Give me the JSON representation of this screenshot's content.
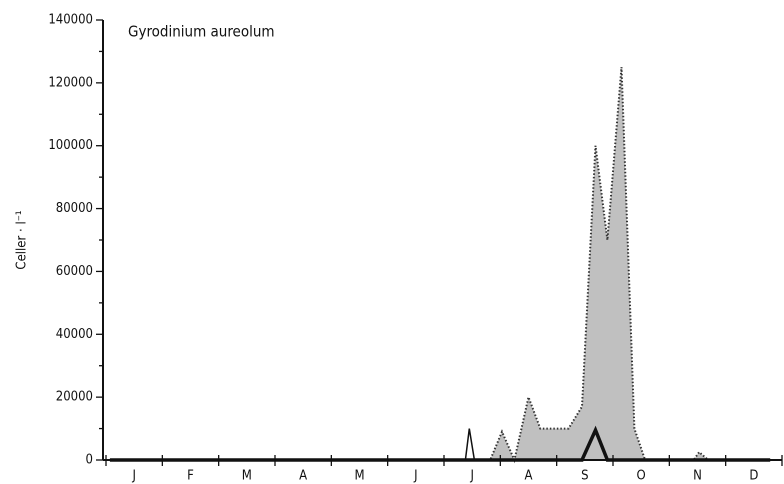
{
  "chart_data": {
    "type": "area",
    "title": "Gyrodinium aureolum",
    "y_label": "Celler · l⁻¹",
    "categories": [
      "J",
      "F",
      "M",
      "A",
      "M",
      "J",
      "J",
      "A",
      "S",
      "O",
      "N",
      "D"
    ],
    "xlim": [
      0,
      12
    ],
    "ylim": [
      0,
      140000
    ],
    "yticks": [
      0,
      20000,
      40000,
      60000,
      80000,
      100000,
      120000,
      140000
    ],
    "yticks_minor": [
      10000,
      30000,
      50000,
      70000,
      90000,
      110000,
      130000
    ],
    "series": [
      {
        "color": "#c0c0c0",
        "line_color": "#333333",
        "dash": "dotted",
        "line_width": 2,
        "fill": true,
        "x": [
          0.07,
          6.82,
          7.03,
          7.25,
          7.5,
          7.71,
          8.21,
          8.45,
          8.69,
          8.9,
          9.15,
          9.38,
          9.57,
          10.43,
          10.53,
          10.69,
          11.79
        ],
        "values": [
          0,
          0,
          9000,
          0,
          20000,
          10000,
          10000,
          17000,
          100000,
          70000,
          125000,
          10000,
          0,
          0,
          2500,
          0,
          0
        ]
      },
      {
        "color": "#111111",
        "line_color": "#111111",
        "dash": "solid",
        "line_width": 1.5,
        "fill": false,
        "x": [
          6.38,
          6.45,
          6.54
        ],
        "values": [
          0,
          10000,
          0
        ]
      },
      {
        "color": "#111111",
        "line_color": "#111111",
        "dash": "solid",
        "line_width": 3.5,
        "fill": false,
        "x": [
          0.07,
          8.45,
          8.69,
          8.9,
          11.79
        ],
        "values": [
          0,
          0,
          9500,
          0,
          0
        ]
      }
    ]
  }
}
